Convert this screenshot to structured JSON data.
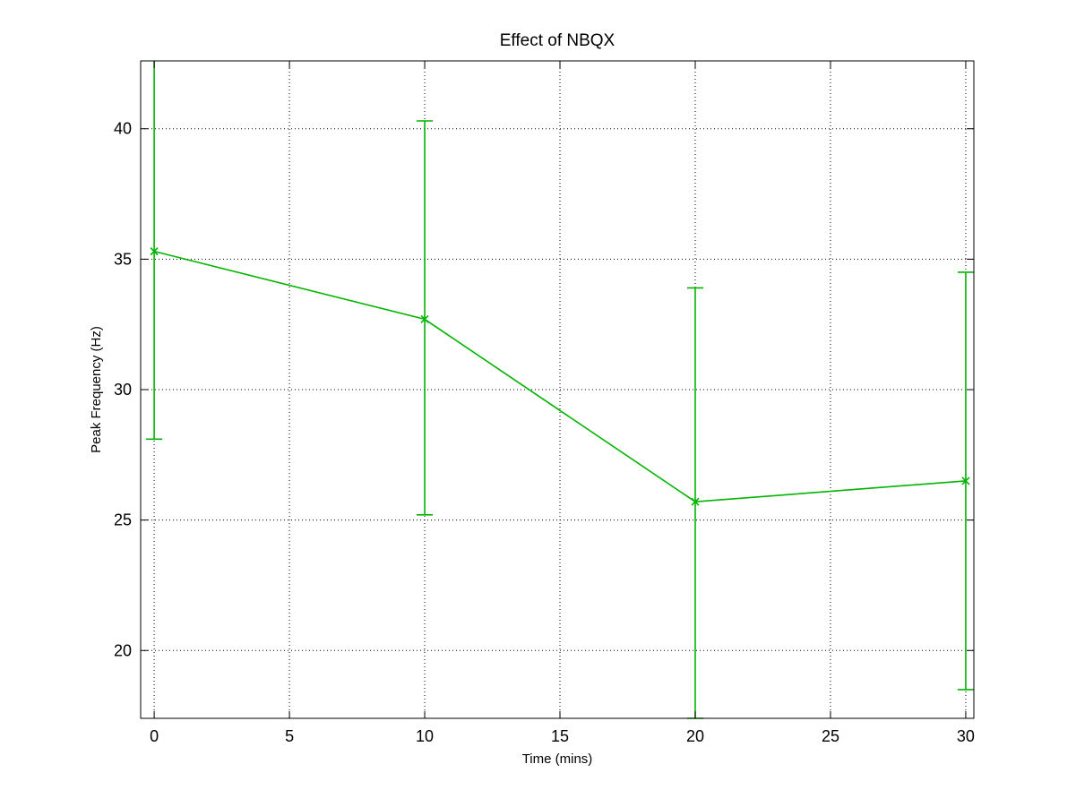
{
  "chart_data": {
    "type": "line",
    "title": "Effect of NBQX",
    "xlabel": "Time (mins)",
    "ylabel": "Peak Frequency (Hz)",
    "xlim": [
      -0.5,
      30.3
    ],
    "ylim": [
      17.4,
      42.6
    ],
    "xticks": [
      0,
      5,
      10,
      15,
      20,
      25,
      30
    ],
    "yticks": [
      20,
      25,
      30,
      35,
      40
    ],
    "grid": true,
    "series": [
      {
        "color": "#00b400",
        "marker": "x",
        "x": [
          0,
          10,
          20,
          30
        ],
        "y": [
          35.3,
          32.7,
          25.7,
          26.5
        ],
        "error_low": [
          28.1,
          25.2,
          17.4,
          18.5
        ],
        "error_high": [
          42.6,
          40.3,
          33.9,
          34.5
        ]
      }
    ]
  }
}
